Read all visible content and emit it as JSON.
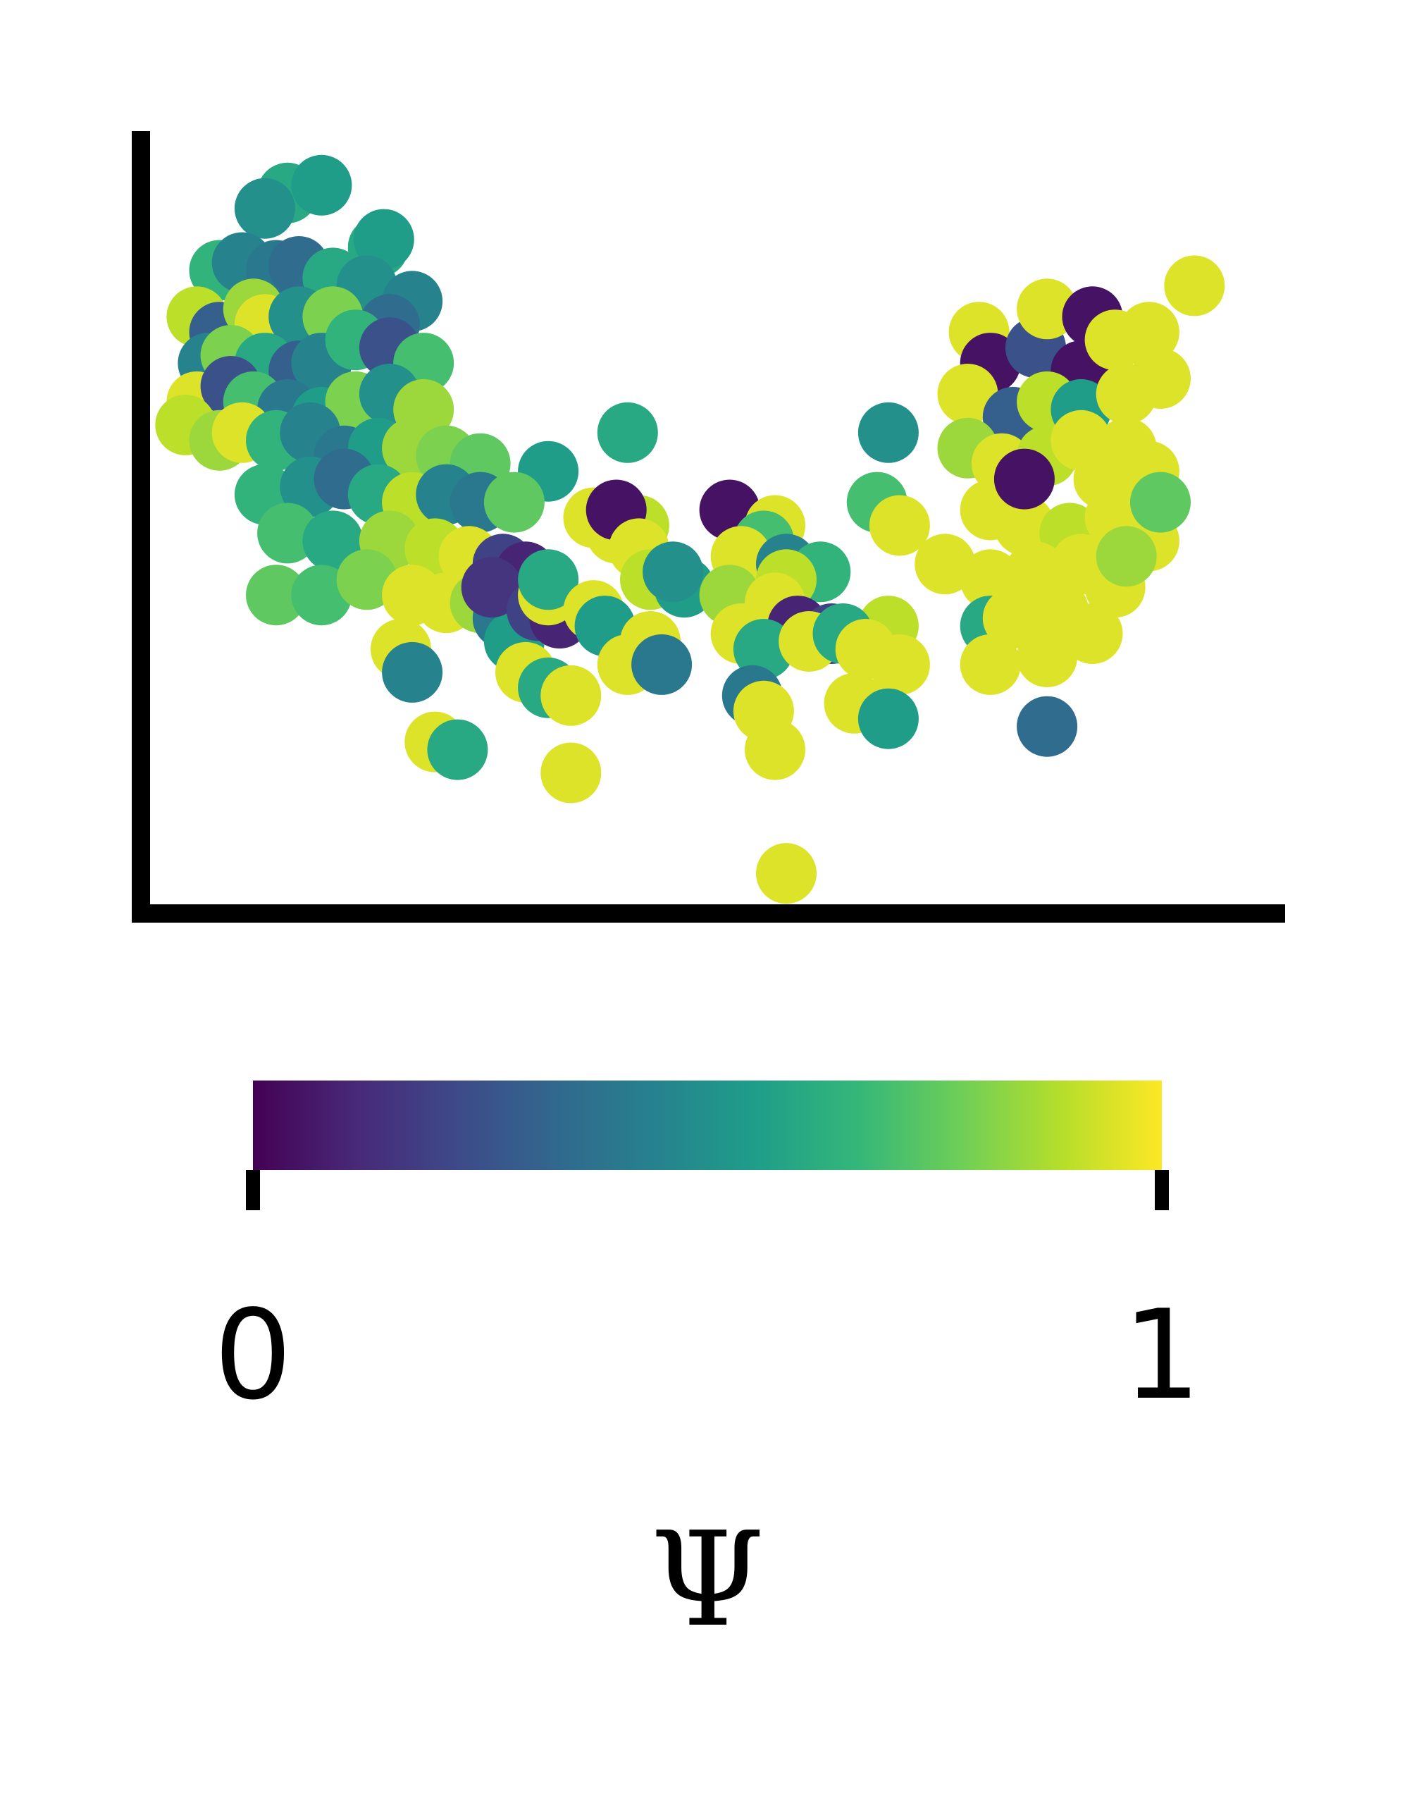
{
  "chart_data": {
    "type": "scatter",
    "title": "",
    "xlabel": "",
    "ylabel": "",
    "xlim": [
      0,
      10
    ],
    "ylim": [
      0,
      10
    ],
    "xticks_visible": false,
    "yticks_visible": false,
    "grid": false,
    "legend": "none",
    "colormap": "viridis",
    "color_stops": [
      "#440154",
      "#482878",
      "#3e4989",
      "#31688e",
      "#26828e",
      "#1f9e89",
      "#35b779",
      "#6ece58",
      "#b5de2b",
      "#fde725"
    ],
    "colorbar": {
      "orientation": "horizontal",
      "placement": "bottom",
      "min": 0,
      "max": 1,
      "tick_labels": [
        "0",
        "1"
      ],
      "label": "Ψ"
    },
    "points": [
      [
        1.2,
        9.2,
        0.6
      ],
      [
        1.5,
        9.3,
        0.55
      ],
      [
        1.0,
        9.0,
        0.5
      ],
      [
        2.0,
        8.5,
        0.6
      ],
      [
        2.05,
        8.6,
        0.55
      ],
      [
        0.6,
        8.2,
        0.65
      ],
      [
        0.8,
        8.3,
        0.45
      ],
      [
        1.1,
        8.2,
        0.4
      ],
      [
        1.3,
        8.25,
        0.35
      ],
      [
        1.6,
        8.1,
        0.6
      ],
      [
        1.9,
        8.0,
        0.5
      ],
      [
        2.3,
        7.8,
        0.45
      ],
      [
        0.4,
        7.6,
        0.9
      ],
      [
        0.6,
        7.4,
        0.3
      ],
      [
        0.9,
        7.7,
        0.85
      ],
      [
        1.0,
        7.5,
        0.95
      ],
      [
        1.3,
        7.6,
        0.5
      ],
      [
        1.6,
        7.6,
        0.8
      ],
      [
        2.1,
        7.5,
        0.35
      ],
      [
        0.5,
        7.0,
        0.45
      ],
      [
        0.7,
        7.1,
        0.8
      ],
      [
        1.0,
        7.0,
        0.6
      ],
      [
        1.3,
        6.9,
        0.3
      ],
      [
        1.5,
        7.0,
        0.45
      ],
      [
        1.8,
        7.3,
        0.65
      ],
      [
        2.1,
        7.2,
        0.25
      ],
      [
        2.4,
        7.0,
        0.7
      ],
      [
        0.4,
        6.5,
        0.95
      ],
      [
        0.7,
        6.7,
        0.25
      ],
      [
        0.9,
        6.5,
        0.7
      ],
      [
        1.2,
        6.4,
        0.4
      ],
      [
        1.5,
        6.3,
        0.55
      ],
      [
        1.8,
        6.5,
        0.8
      ],
      [
        2.1,
        6.6,
        0.5
      ],
      [
        2.4,
        6.4,
        0.85
      ],
      [
        0.3,
        6.2,
        0.9
      ],
      [
        0.6,
        6.0,
        0.85
      ],
      [
        0.8,
        6.1,
        0.95
      ],
      [
        1.1,
        6.0,
        0.65
      ],
      [
        1.4,
        6.1,
        0.45
      ],
      [
        1.7,
        5.8,
        0.4
      ],
      [
        2.0,
        5.9,
        0.55
      ],
      [
        2.3,
        5.9,
        0.85
      ],
      [
        2.6,
        5.8,
        0.8
      ],
      [
        2.9,
        5.7,
        0.75
      ],
      [
        1.0,
        5.3,
        0.65
      ],
      [
        1.4,
        5.4,
        0.5
      ],
      [
        1.7,
        5.5,
        0.35
      ],
      [
        2.0,
        5.3,
        0.6
      ],
      [
        2.3,
        5.2,
        0.9
      ],
      [
        2.6,
        5.3,
        0.45
      ],
      [
        2.9,
        5.2,
        0.4
      ],
      [
        1.2,
        4.8,
        0.7
      ],
      [
        1.6,
        4.7,
        0.6
      ],
      [
        2.1,
        4.7,
        0.85
      ],
      [
        2.5,
        4.6,
        0.9
      ],
      [
        2.8,
        4.5,
        0.95
      ],
      [
        3.1,
        4.4,
        0.2
      ],
      [
        3.3,
        4.3,
        0.1
      ],
      [
        1.1,
        4.0,
        0.75
      ],
      [
        1.5,
        4.0,
        0.7
      ],
      [
        1.9,
        4.2,
        0.8
      ],
      [
        2.3,
        4.0,
        0.95
      ],
      [
        2.6,
        3.9,
        0.95
      ],
      [
        2.9,
        3.9,
        0.85
      ],
      [
        3.1,
        3.7,
        0.4
      ],
      [
        3.2,
        3.4,
        0.55
      ],
      [
        2.2,
        3.3,
        0.95
      ],
      [
        2.3,
        3.0,
        0.45
      ],
      [
        3.3,
        3.0,
        0.95
      ],
      [
        3.5,
        2.8,
        0.6
      ],
      [
        3.7,
        2.7,
        0.95
      ],
      [
        2.5,
        2.1,
        0.95
      ],
      [
        2.7,
        2.0,
        0.6
      ],
      [
        3.0,
        4.1,
        0.15
      ],
      [
        3.4,
        3.8,
        0.2
      ],
      [
        3.6,
        3.7,
        0.1
      ],
      [
        3.5,
        5.6,
        0.55
      ],
      [
        4.2,
        6.1,
        0.6
      ],
      [
        3.2,
        5.2,
        0.75
      ],
      [
        3.9,
        5.0,
        0.95
      ],
      [
        4.1,
        4.8,
        0.95
      ],
      [
        4.3,
        4.9,
        0.9
      ],
      [
        4.1,
        5.1,
        0.05
      ],
      [
        4.3,
        4.6,
        0.95
      ],
      [
        3.5,
        4.0,
        0.95
      ],
      [
        3.5,
        4.2,
        0.6
      ],
      [
        3.9,
        3.8,
        0.95
      ],
      [
        4.0,
        3.6,
        0.55
      ],
      [
        4.4,
        3.4,
        0.95
      ],
      [
        4.2,
        3.1,
        0.95
      ],
      [
        4.5,
        3.1,
        0.4
      ],
      [
        4.4,
        4.2,
        0.9
      ],
      [
        4.7,
        4.1,
        0.55
      ],
      [
        4.6,
        4.3,
        0.5
      ],
      [
        3.7,
        1.7,
        0.95
      ],
      [
        5.1,
        5.1,
        0.05
      ],
      [
        5.5,
        4.9,
        0.95
      ],
      [
        5.4,
        4.7,
        0.7
      ],
      [
        5.2,
        4.5,
        0.95
      ],
      [
        5.6,
        4.4,
        0.45
      ],
      [
        5.9,
        4.3,
        0.65
      ],
      [
        5.6,
        4.2,
        0.9
      ],
      [
        5.1,
        4.0,
        0.85
      ],
      [
        5.5,
        3.9,
        0.95
      ],
      [
        5.7,
        3.6,
        0.1
      ],
      [
        6.0,
        3.5,
        0.2
      ],
      [
        5.2,
        3.5,
        0.95
      ],
      [
        5.4,
        3.3,
        0.6
      ],
      [
        5.8,
        3.4,
        0.95
      ],
      [
        5.3,
        2.7,
        0.4
      ],
      [
        5.4,
        2.5,
        0.95
      ],
      [
        5.5,
        2.0,
        0.95
      ],
      [
        6.5,
        6.1,
        0.5
      ],
      [
        6.4,
        5.2,
        0.7
      ],
      [
        6.6,
        4.9,
        0.95
      ],
      [
        6.5,
        3.6,
        0.9
      ],
      [
        6.1,
        3.5,
        0.6
      ],
      [
        6.3,
        3.3,
        0.95
      ],
      [
        6.6,
        3.1,
        0.95
      ],
      [
        6.2,
        2.6,
        0.95
      ],
      [
        6.5,
        2.4,
        0.55
      ],
      [
        5.6,
        0.4,
        0.95
      ],
      [
        7.3,
        7.4,
        0.95
      ],
      [
        7.4,
        7.0,
        0.05
      ],
      [
        7.8,
        7.2,
        0.25
      ],
      [
        7.9,
        7.7,
        0.95
      ],
      [
        8.3,
        7.6,
        0.05
      ],
      [
        8.2,
        6.9,
        0.05
      ],
      [
        8.5,
        7.3,
        0.95
      ],
      [
        8.8,
        7.4,
        0.95
      ],
      [
        7.2,
        6.6,
        0.95
      ],
      [
        7.6,
        6.3,
        0.3
      ],
      [
        7.9,
        6.5,
        0.9
      ],
      [
        8.2,
        6.4,
        0.55
      ],
      [
        8.6,
        6.6,
        0.95
      ],
      [
        8.9,
        6.8,
        0.95
      ],
      [
        9.2,
        8.0,
        0.95
      ],
      [
        7.2,
        5.9,
        0.85
      ],
      [
        7.5,
        5.7,
        0.95
      ],
      [
        7.9,
        5.8,
        0.9
      ],
      [
        8.2,
        6.0,
        0.95
      ],
      [
        8.6,
        5.9,
        0.95
      ],
      [
        8.8,
        5.6,
        0.95
      ],
      [
        7.4,
        5.1,
        0.95
      ],
      [
        7.7,
        4.9,
        0.95
      ],
      [
        8.1,
        4.8,
        0.9
      ],
      [
        8.5,
        5.0,
        0.95
      ],
      [
        8.8,
        4.7,
        0.95
      ],
      [
        8.9,
        5.2,
        0.75
      ],
      [
        7.0,
        4.4,
        0.95
      ],
      [
        7.4,
        4.2,
        0.95
      ],
      [
        7.8,
        4.3,
        0.95
      ],
      [
        8.2,
        4.4,
        0.95
      ],
      [
        8.5,
        4.1,
        0.95
      ],
      [
        7.4,
        3.6,
        0.6
      ],
      [
        7.6,
        3.7,
        0.95
      ],
      [
        8.0,
        3.8,
        0.95
      ],
      [
        8.3,
        3.5,
        0.95
      ],
      [
        7.4,
        3.1,
        0.95
      ],
      [
        7.9,
        2.3,
        0.35
      ],
      [
        7.7,
        5.5,
        0.05
      ],
      [
        8.4,
        5.5,
        0.95
      ],
      [
        8.6,
        4.5,
        0.85
      ],
      [
        7.9,
        3.2,
        0.95
      ]
    ]
  }
}
